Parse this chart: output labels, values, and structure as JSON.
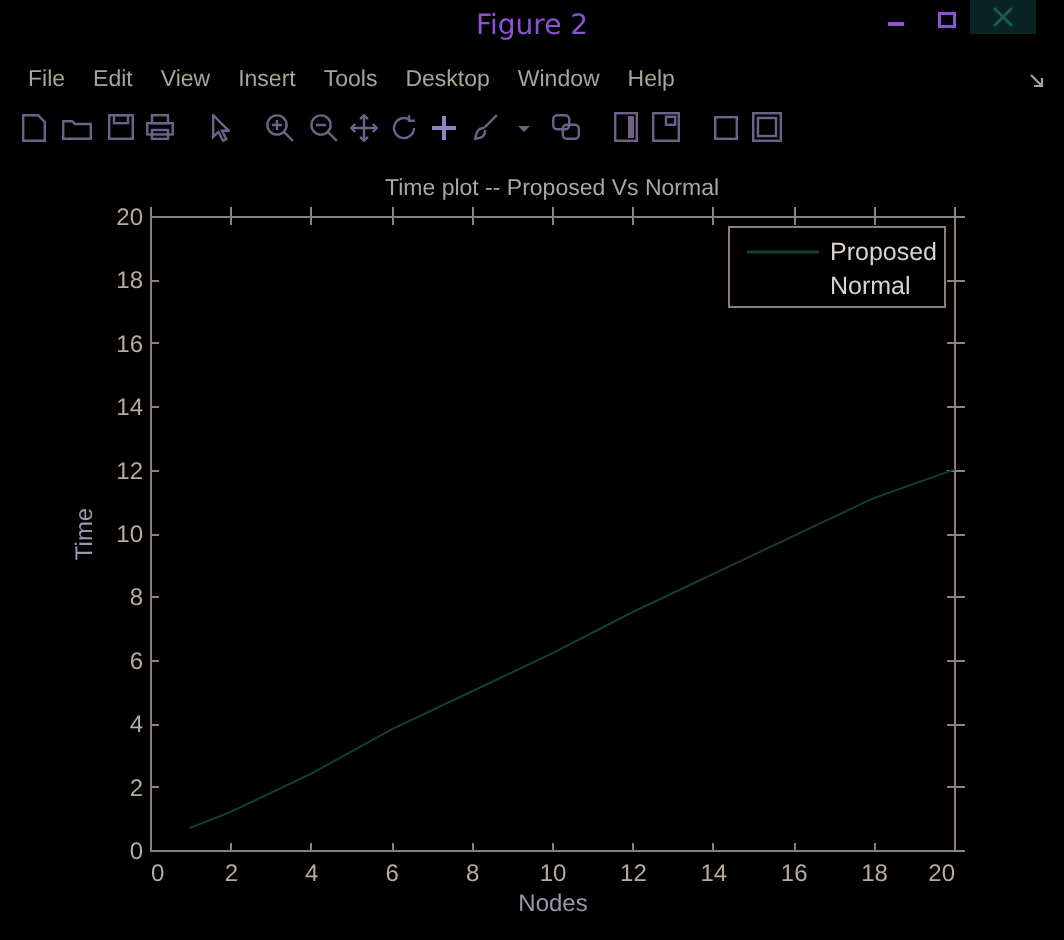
{
  "chart_data": {
    "type": "line",
    "title": "Time plot -- Proposed Vs Normal",
    "xlabel": "Nodes",
    "ylabel": "Time",
    "x": [
      1,
      2,
      4,
      6,
      8,
      10,
      12,
      14,
      16,
      18,
      20
    ],
    "series": [
      {
        "name": "Proposed",
        "color": "#123e34",
        "values": [
          0.7,
          1.2,
          2.4,
          3.8,
          5.0,
          6.2,
          7.5,
          8.7,
          9.9,
          11.1,
          12.0
        ]
      },
      {
        "name": "Normal",
        "values": [
          null,
          null,
          null,
          null,
          null,
          null,
          null,
          null,
          null,
          null,
          null
        ]
      }
    ],
    "xlim": [
      0,
      20
    ],
    "xticks": [
      0,
      2,
      4,
      6,
      8,
      10,
      12,
      14,
      16,
      18,
      20
    ],
    "ylim": [
      0,
      20
    ],
    "yticks": [
      0,
      2,
      4,
      6,
      8,
      10,
      12,
      14,
      16,
      18,
      20
    ],
    "legend": "top right",
    "annotations": [
      "Figure 2",
      "File",
      "Edit",
      "View",
      "Insert",
      "Tools",
      "Desktop",
      "Window",
      "Help"
    ]
  }
}
